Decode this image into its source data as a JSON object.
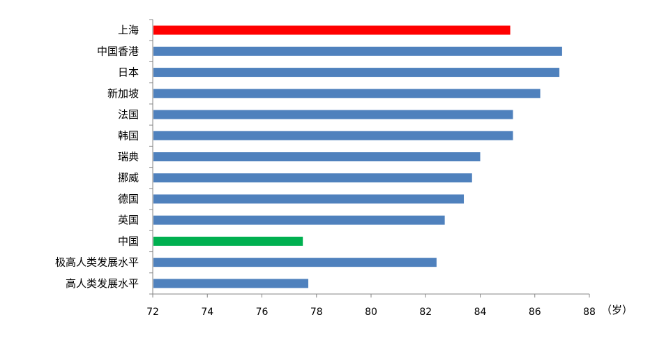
{
  "chart_data": {
    "type": "bar",
    "orientation": "horizontal",
    "categories": [
      "上海",
      "中国香港",
      "日本",
      "新加坡",
      "法国",
      "韩国",
      "瑞典",
      "挪威",
      "德国",
      "英国",
      "中国",
      "极高人类发展水平",
      "高人类发展水平"
    ],
    "values": [
      85.1,
      87.0,
      86.9,
      86.2,
      85.2,
      85.2,
      84.0,
      83.7,
      83.4,
      82.7,
      77.5,
      82.4,
      77.7
    ],
    "bar_colors": [
      "#ff0000",
      "#4f81bd",
      "#4f81bd",
      "#4f81bd",
      "#4f81bd",
      "#4f81bd",
      "#4f81bd",
      "#4f81bd",
      "#4f81bd",
      "#4f81bd",
      "#00b050",
      "#4f81bd",
      "#4f81bd"
    ],
    "xlim": [
      72,
      88
    ],
    "xticks": [
      72,
      74,
      76,
      78,
      80,
      82,
      84,
      86,
      88
    ],
    "x_unit": "（岁）",
    "grid": false,
    "legend": "none"
  }
}
